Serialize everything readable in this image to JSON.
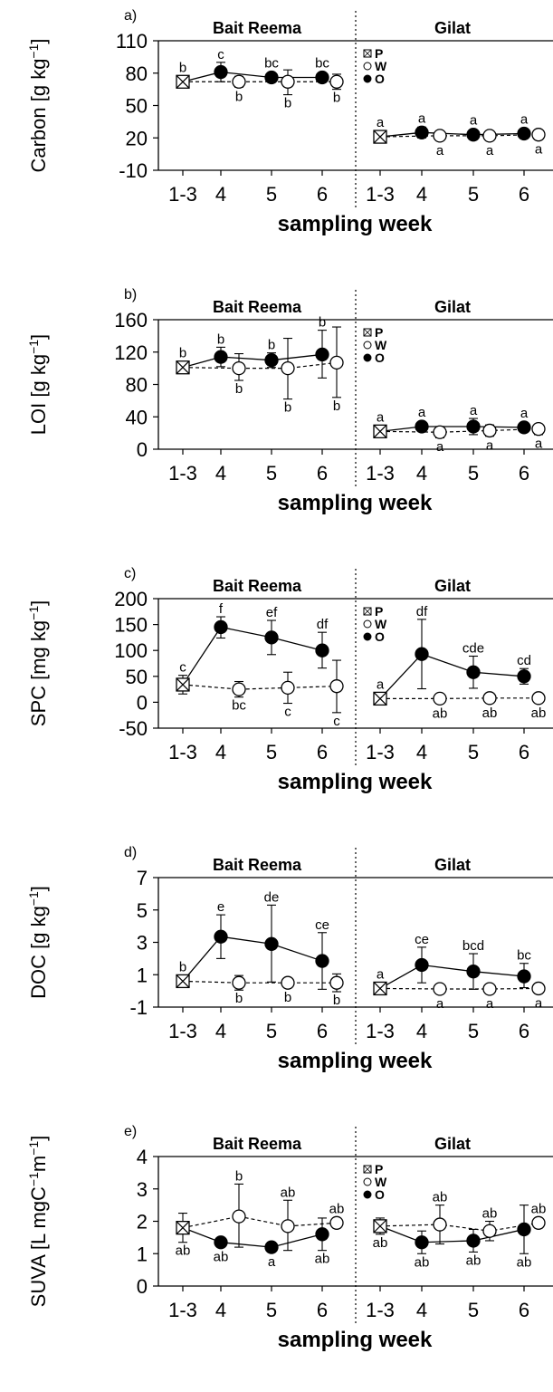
{
  "chart_data": [
    {
      "panel": "a)",
      "type": "line",
      "ylabel_base": "Carbon [g kg",
      "ylabel_sup": "−1",
      "ylabel_end": "]",
      "xlabel": "sampling week",
      "sites": [
        "Bait Reema",
        "Gilat"
      ],
      "x_ticks": [
        "1-3",
        "4",
        "5",
        "6"
      ],
      "y_ticks": [
        -10,
        20,
        50,
        80,
        110
      ],
      "ylim": [
        -10,
        110
      ],
      "legend_show": true,
      "legend": [
        "P",
        "W",
        "O"
      ],
      "series": {
        "O": [
          {
            "site": 0,
            "x": "1-3",
            "y": 72,
            "lo": 68,
            "hi": 76,
            "letter": "b",
            "lpos": "above"
          },
          {
            "site": 0,
            "x": "4",
            "y": 81,
            "lo": 72,
            "hi": 90,
            "letter": "c",
            "lpos": "above"
          },
          {
            "site": 0,
            "x": "5",
            "y": 76,
            "lo": 74,
            "hi": 78,
            "letter": "bc",
            "lpos": "above"
          },
          {
            "site": 0,
            "x": "6",
            "y": 76,
            "lo": 74,
            "hi": 78,
            "letter": "bc",
            "lpos": "above"
          },
          {
            "site": 1,
            "x": "1-3",
            "y": 21,
            "lo": 18,
            "hi": 24,
            "letter": "a",
            "lpos": "above"
          },
          {
            "site": 1,
            "x": "4",
            "y": 25,
            "lo": 20,
            "hi": 30,
            "letter": "a",
            "lpos": "above"
          },
          {
            "site": 1,
            "x": "5",
            "y": 23,
            "lo": 19,
            "hi": 27,
            "letter": "a",
            "lpos": "above"
          },
          {
            "site": 1,
            "x": "6",
            "y": 24,
            "lo": 20,
            "hi": 28,
            "letter": "a",
            "lpos": "above"
          }
        ],
        "W": [
          {
            "site": 0,
            "x": "4",
            "y": 72,
            "lo": 67,
            "hi": 77,
            "letter": "b",
            "lpos": "below"
          },
          {
            "site": 0,
            "x": "5",
            "y": 72,
            "lo": 60,
            "hi": 83,
            "letter": "b",
            "lpos": "below"
          },
          {
            "site": 0,
            "x": "6",
            "y": 72,
            "lo": 65,
            "hi": 79,
            "letter": "b",
            "lpos": "below"
          },
          {
            "site": 1,
            "x": "4",
            "y": 22,
            "lo": 20,
            "hi": 24,
            "letter": "a",
            "lpos": "below"
          },
          {
            "site": 1,
            "x": "5",
            "y": 22,
            "lo": 20,
            "hi": 24,
            "letter": "a",
            "lpos": "below"
          },
          {
            "site": 1,
            "x": "6",
            "y": 23,
            "lo": 20,
            "hi": 26,
            "letter": "a",
            "lpos": "below"
          }
        ]
      }
    },
    {
      "panel": "b)",
      "type": "line",
      "ylabel_base": "LOI [g kg",
      "ylabel_sup": "−1",
      "ylabel_end": "]",
      "xlabel": "sampling week",
      "sites": [
        "Bait Reema",
        "Gilat"
      ],
      "x_ticks": [
        "1-3",
        "4",
        "5",
        "6"
      ],
      "y_ticks": [
        0,
        40,
        80,
        120,
        160
      ],
      "ylim": [
        0,
        160
      ],
      "legend_show": true,
      "legend": [
        "P",
        "W",
        "O"
      ],
      "series": {
        "O": [
          {
            "site": 0,
            "x": "1-3",
            "y": 101,
            "lo": 94,
            "hi": 108,
            "letter": "b",
            "lpos": "above"
          },
          {
            "site": 0,
            "x": "4",
            "y": 114,
            "lo": 102,
            "hi": 126,
            "letter": "b",
            "lpos": "above"
          },
          {
            "site": 0,
            "x": "5",
            "y": 110,
            "lo": 101,
            "hi": 119,
            "letter": "b",
            "lpos": "above"
          },
          {
            "site": 0,
            "x": "6",
            "y": 117,
            "lo": 88,
            "hi": 147,
            "letter": "b",
            "lpos": "above"
          },
          {
            "site": 1,
            "x": "1-3",
            "y": 22,
            "lo": 17,
            "hi": 27,
            "letter": "a",
            "lpos": "above"
          },
          {
            "site": 1,
            "x": "4",
            "y": 28,
            "lo": 24,
            "hi": 32,
            "letter": "a",
            "lpos": "above"
          },
          {
            "site": 1,
            "x": "5",
            "y": 28,
            "lo": 18,
            "hi": 38,
            "letter": "a",
            "lpos": "above"
          },
          {
            "site": 1,
            "x": "6",
            "y": 27,
            "lo": 23,
            "hi": 31,
            "letter": "a",
            "lpos": "above"
          }
        ],
        "W": [
          {
            "site": 0,
            "x": "4",
            "y": 100,
            "lo": 85,
            "hi": 118,
            "letter": "b",
            "lpos": "below"
          },
          {
            "site": 0,
            "x": "5",
            "y": 100,
            "lo": 62,
            "hi": 137,
            "letter": "b",
            "lpos": "below"
          },
          {
            "site": 0,
            "x": "6",
            "y": 107,
            "lo": 64,
            "hi": 151,
            "letter": "b",
            "lpos": "below"
          },
          {
            "site": 1,
            "x": "4",
            "y": 21,
            "lo": 14,
            "hi": 28,
            "letter": "a",
            "lpos": "below"
          },
          {
            "site": 1,
            "x": "5",
            "y": 23,
            "lo": 16,
            "hi": 30,
            "letter": "a",
            "lpos": "below"
          },
          {
            "site": 1,
            "x": "6",
            "y": 25,
            "lo": 18,
            "hi": 31,
            "letter": "a",
            "lpos": "below"
          }
        ]
      }
    },
    {
      "panel": "c)",
      "type": "line",
      "ylabel_base": "SPC [mg kg",
      "ylabel_sup": "−1",
      "ylabel_end": "]",
      "xlabel": "sampling week",
      "sites": [
        "Bait Reema",
        "Gilat"
      ],
      "x_ticks": [
        "1-3",
        "4",
        "5",
        "6"
      ],
      "y_ticks": [
        -50,
        0,
        50,
        100,
        150,
        200
      ],
      "ylim": [
        -50,
        200
      ],
      "legend_show": true,
      "legend": [
        "P",
        "W",
        "O"
      ],
      "series": {
        "O": [
          {
            "site": 0,
            "x": "1-3",
            "y": 34,
            "lo": 16,
            "hi": 52,
            "letter": "c",
            "lpos": "above"
          },
          {
            "site": 0,
            "x": "4",
            "y": 145,
            "lo": 124,
            "hi": 165,
            "letter": "f",
            "lpos": "above"
          },
          {
            "site": 0,
            "x": "5",
            "y": 125,
            "lo": 92,
            "hi": 158,
            "letter": "ef",
            "lpos": "above"
          },
          {
            "site": 0,
            "x": "6",
            "y": 100,
            "lo": 66,
            "hi": 135,
            "letter": "df",
            "lpos": "above"
          },
          {
            "site": 1,
            "x": "1-3",
            "y": 7,
            "lo": 3,
            "hi": 11,
            "letter": "a",
            "lpos": "above"
          },
          {
            "site": 1,
            "x": "4",
            "y": 93,
            "lo": 26,
            "hi": 160,
            "letter": "df",
            "lpos": "above"
          },
          {
            "site": 1,
            "x": "5",
            "y": 58,
            "lo": 27,
            "hi": 89,
            "letter": "cde",
            "lpos": "above"
          },
          {
            "site": 1,
            "x": "6",
            "y": 50,
            "lo": 35,
            "hi": 65,
            "letter": "cd",
            "lpos": "above"
          }
        ],
        "W": [
          {
            "site": 0,
            "x": "4",
            "y": 25,
            "lo": 10,
            "hi": 40,
            "letter": "bc",
            "lpos": "below"
          },
          {
            "site": 0,
            "x": "5",
            "y": 28,
            "lo": -2,
            "hi": 58,
            "letter": "c",
            "lpos": "below"
          },
          {
            "site": 0,
            "x": "6",
            "y": 31,
            "lo": -20,
            "hi": 81,
            "letter": "c",
            "lpos": "below"
          },
          {
            "site": 1,
            "x": "4",
            "y": 7,
            "lo": 2,
            "hi": 13,
            "letter": "ab",
            "lpos": "below"
          },
          {
            "site": 1,
            "x": "5",
            "y": 8,
            "lo": 4,
            "hi": 12,
            "letter": "ab",
            "lpos": "below"
          },
          {
            "site": 1,
            "x": "6",
            "y": 8,
            "lo": 5,
            "hi": 11,
            "letter": "ab",
            "lpos": "below"
          }
        ]
      }
    },
    {
      "panel": "d)",
      "type": "line",
      "ylabel_base": "DOC [g kg",
      "ylabel_sup": "−1",
      "ylabel_end": "]",
      "xlabel": "sampling week",
      "sites": [
        "Bait Reema",
        "Gilat"
      ],
      "x_ticks": [
        "1-3",
        "4",
        "5",
        "6"
      ],
      "y_ticks": [
        -1,
        1,
        3,
        5,
        7
      ],
      "ylim": [
        -1,
        7
      ],
      "legend_show": false,
      "legend": [],
      "series": {
        "O": [
          {
            "site": 0,
            "x": "1-3",
            "y": 0.6,
            "lo": 0.45,
            "hi": 0.75,
            "letter": "b",
            "lpos": "above"
          },
          {
            "site": 0,
            "x": "4",
            "y": 3.35,
            "lo": 2.0,
            "hi": 4.7,
            "letter": "e",
            "lpos": "above"
          },
          {
            "site": 0,
            "x": "5",
            "y": 2.9,
            "lo": 0.55,
            "hi": 5.3,
            "letter": "de",
            "lpos": "above"
          },
          {
            "site": 0,
            "x": "6",
            "y": 1.85,
            "lo": 0.1,
            "hi": 3.6,
            "letter": "ce",
            "lpos": "above"
          },
          {
            "site": 1,
            "x": "1-3",
            "y": 0.15,
            "lo": 0.05,
            "hi": 0.25,
            "letter": "a",
            "lpos": "above"
          },
          {
            "site": 1,
            "x": "4",
            "y": 1.6,
            "lo": 0.5,
            "hi": 2.7,
            "letter": "ce",
            "lpos": "above"
          },
          {
            "site": 1,
            "x": "5",
            "y": 1.2,
            "lo": 0.1,
            "hi": 2.3,
            "letter": "bcd",
            "lpos": "above"
          },
          {
            "site": 1,
            "x": "6",
            "y": 0.9,
            "lo": 0.2,
            "hi": 1.7,
            "letter": "bc",
            "lpos": "above"
          }
        ],
        "W": [
          {
            "site": 0,
            "x": "4",
            "y": 0.5,
            "lo": 0.05,
            "hi": 0.95,
            "letter": "b",
            "lpos": "below"
          },
          {
            "site": 0,
            "x": "5",
            "y": 0.5,
            "lo": 0.25,
            "hi": 0.75,
            "letter": "b",
            "lpos": "below"
          },
          {
            "site": 0,
            "x": "6",
            "y": 0.5,
            "lo": -0.05,
            "hi": 1.05,
            "letter": "b",
            "lpos": "below"
          },
          {
            "site": 1,
            "x": "4",
            "y": 0.12,
            "lo": 0.05,
            "hi": 0.2,
            "letter": "a",
            "lpos": "below"
          },
          {
            "site": 1,
            "x": "5",
            "y": 0.12,
            "lo": 0.05,
            "hi": 0.2,
            "letter": "a",
            "lpos": "below"
          },
          {
            "site": 1,
            "x": "6",
            "y": 0.15,
            "lo": 0.05,
            "hi": 0.25,
            "letter": "a",
            "lpos": "below"
          }
        ]
      }
    },
    {
      "panel": "e)",
      "type": "line",
      "ylabel_base": "SUVA [L mgC",
      "ylabel_sup": "−1",
      "ylabel_end": "m",
      "ylabel_sup2": "−1",
      "ylabel_end2": "]",
      "xlabel": "sampling week",
      "sites": [
        "Bait Reema",
        "Gilat"
      ],
      "x_ticks": [
        "1-3",
        "4",
        "5",
        "6"
      ],
      "y_ticks": [
        0,
        1,
        2,
        3,
        4
      ],
      "ylim": [
        0,
        4
      ],
      "legend_show": true,
      "legend": [
        "P",
        "W",
        "O"
      ],
      "series": {
        "O": [
          {
            "site": 0,
            "x": "1-3",
            "y": 1.8,
            "lo": 1.35,
            "hi": 2.25,
            "letter": "ab",
            "lpos": "below"
          },
          {
            "site": 0,
            "x": "4",
            "y": 1.35,
            "lo": 1.25,
            "hi": 1.45,
            "letter": "ab",
            "lpos": "below"
          },
          {
            "site": 0,
            "x": "5",
            "y": 1.2,
            "lo": 1.05,
            "hi": 1.35,
            "letter": "a",
            "lpos": "below"
          },
          {
            "site": 0,
            "x": "6",
            "y": 1.6,
            "lo": 1.1,
            "hi": 2.1,
            "letter": "ab",
            "lpos": "below"
          },
          {
            "site": 1,
            "x": "1-3",
            "y": 1.85,
            "lo": 1.6,
            "hi": 2.1,
            "letter": "ab",
            "lpos": "below"
          },
          {
            "site": 1,
            "x": "4",
            "y": 1.35,
            "lo": 1.0,
            "hi": 1.7,
            "letter": "ab",
            "lpos": "below"
          },
          {
            "site": 1,
            "x": "5",
            "y": 1.4,
            "lo": 1.05,
            "hi": 1.75,
            "letter": "ab",
            "lpos": "below"
          },
          {
            "site": 1,
            "x": "6",
            "y": 1.75,
            "lo": 1.0,
            "hi": 2.5,
            "letter": "ab",
            "lpos": "below"
          }
        ],
        "W": [
          {
            "site": 0,
            "x": "4",
            "y": 2.15,
            "lo": 1.2,
            "hi": 3.15,
            "letter": "b",
            "lpos": "above"
          },
          {
            "site": 0,
            "x": "5",
            "y": 1.85,
            "lo": 1.1,
            "hi": 2.65,
            "letter": "ab",
            "lpos": "above"
          },
          {
            "site": 0,
            "x": "6",
            "y": 1.95,
            "lo": 1.8,
            "hi": 2.1,
            "letter": "ab",
            "lpos": "above"
          },
          {
            "site": 1,
            "x": "4",
            "y": 1.9,
            "lo": 1.3,
            "hi": 2.5,
            "letter": "ab",
            "lpos": "above"
          },
          {
            "site": 1,
            "x": "5",
            "y": 1.7,
            "lo": 1.4,
            "hi": 2.0,
            "letter": "ab",
            "lpos": "above"
          },
          {
            "site": 1,
            "x": "6",
            "y": 1.95,
            "lo": 1.8,
            "hi": 2.1,
            "letter": "ab",
            "lpos": "above"
          }
        ]
      }
    }
  ]
}
